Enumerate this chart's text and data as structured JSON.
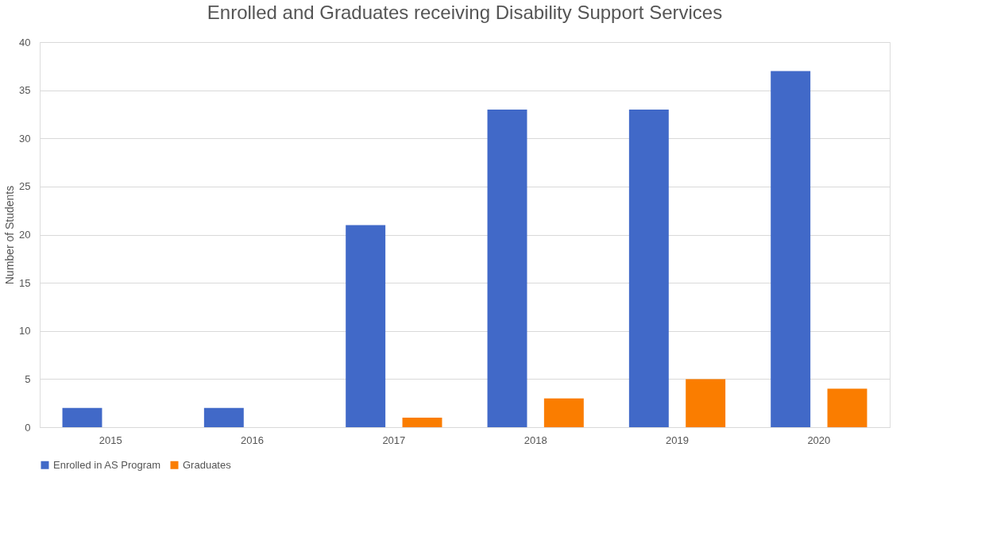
{
  "chart_data": {
    "type": "bar",
    "title": "Enrolled and Graduates receiving Disability Support Services",
    "ylabel": "Number of Students",
    "categories": [
      "2015",
      "2016",
      "2017",
      "2018",
      "2019",
      "2020"
    ],
    "series": [
      {
        "name": "Enrolled in AS Program",
        "color": "#4169c8",
        "values": [
          2,
          2,
          21,
          33,
          33,
          37
        ]
      },
      {
        "name": "Graduates",
        "color": "#fa7d00",
        "values": [
          0,
          0,
          1,
          3,
          5,
          4
        ]
      }
    ],
    "ylim": [
      0,
      40
    ],
    "yticks": [
      0,
      5,
      10,
      15,
      20,
      25,
      30,
      35,
      40
    ],
    "grid": "y",
    "legend": "bottom"
  }
}
